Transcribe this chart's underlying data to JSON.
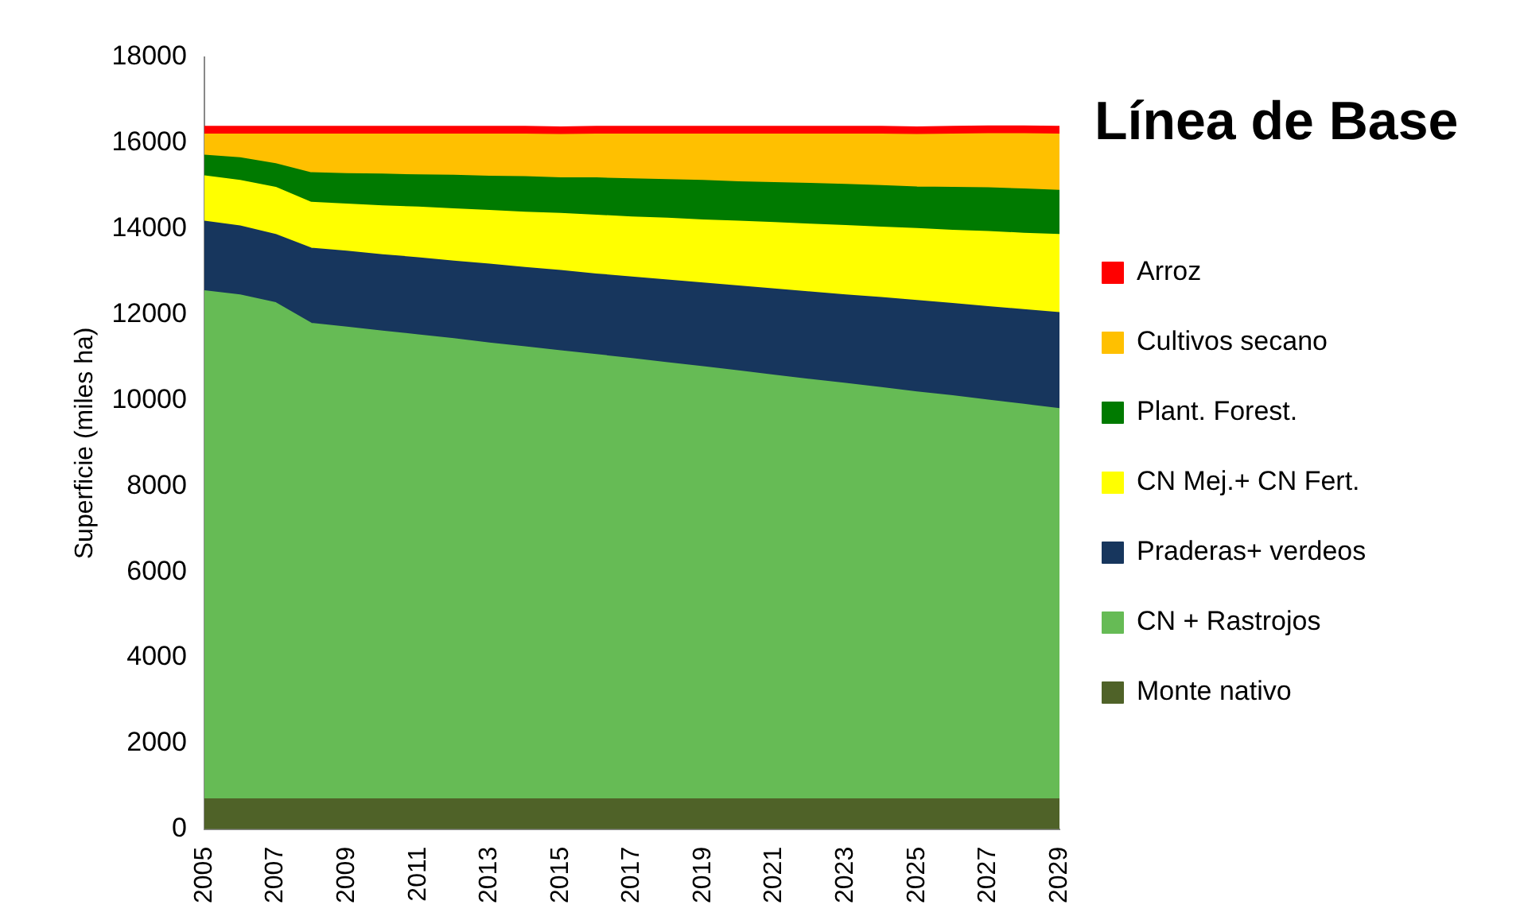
{
  "chart_data": {
    "type": "area",
    "stacked": true,
    "title": "Línea de Base",
    "ylabel": "Superficie (miles ha)",
    "categories": [
      "2005",
      null,
      "2007",
      null,
      "2009",
      null,
      "2011",
      null,
      "2013",
      null,
      "2015",
      null,
      "2017",
      null,
      "2019",
      null,
      "2021",
      null,
      "2023",
      null,
      "2025",
      null,
      "2027",
      null,
      "2029"
    ],
    "ylim": [
      0,
      18000
    ],
    "yticks": [
      0,
      2000,
      4000,
      6000,
      8000,
      10000,
      12000,
      14000,
      16000,
      18000
    ],
    "grid": false,
    "legend": "right",
    "series": [
      {
        "name": "Monte nativo",
        "color": "#4f6228",
        "values": [
          700,
          700,
          700,
          700,
          700,
          700,
          700,
          700,
          700,
          700,
          700,
          700,
          700,
          700,
          700,
          700,
          700,
          700,
          700,
          700,
          700,
          700,
          700,
          700,
          700
        ]
      },
      {
        "name": "CN + Rastrojos",
        "color": "#66bb55",
        "values": [
          11850,
          11750,
          11570,
          11090,
          11000,
          10910,
          10820,
          10730,
          10630,
          10540,
          10450,
          10360,
          10270,
          10170,
          10080,
          9980,
          9880,
          9780,
          9690,
          9590,
          9490,
          9400,
          9300,
          9200,
          9100
        ]
      },
      {
        "name": "Praderas+ verdeos",
        "color": "#17365d",
        "values": [
          1620,
          1610,
          1590,
          1750,
          1770,
          1780,
          1800,
          1810,
          1840,
          1850,
          1870,
          1880,
          1900,
          1930,
          1950,
          1980,
          2010,
          2040,
          2060,
          2100,
          2130,
          2150,
          2180,
          2210,
          2240
        ]
      },
      {
        "name": "CN Mej.+ CN Fert.",
        "color": "#ffff00",
        "values": [
          1060,
          1060,
          1100,
          1070,
          1100,
          1140,
          1180,
          1220,
          1250,
          1290,
          1330,
          1370,
          1400,
          1440,
          1470,
          1510,
          1550,
          1580,
          1620,
          1640,
          1680,
          1710,
          1750,
          1780,
          1820
        ]
      },
      {
        "name": "Plant. Forest.",
        "color": "#007a00",
        "values": [
          480,
          530,
          550,
          690,
          710,
          740,
          750,
          780,
          800,
          830,
          830,
          870,
          890,
          900,
          920,
          920,
          930,
          950,
          960,
          970,
          970,
          1000,
          1020,
          1030,
          1030
        ]
      },
      {
        "name": "Cultivos secano",
        "color": "#ffc000",
        "values": [
          490,
          550,
          690,
          900,
          920,
          930,
          950,
          960,
          980,
          990,
          1010,
          1020,
          1040,
          1060,
          1080,
          1110,
          1130,
          1150,
          1170,
          1200,
          1220,
          1240,
          1260,
          1290,
          1310
        ]
      },
      {
        "name": "Arroz",
        "color": "#ff0000",
        "values": [
          180,
          180,
          180,
          180,
          180,
          180,
          180,
          180,
          180,
          180,
          180,
          180,
          180,
          180,
          180,
          180,
          180,
          180,
          180,
          180,
          180,
          180,
          180,
          180,
          180
        ]
      }
    ]
  }
}
